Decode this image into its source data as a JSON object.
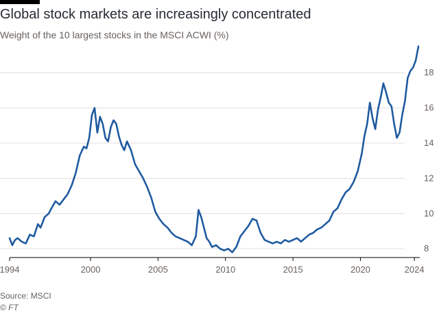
{
  "header": {
    "title": "Global stock markets are increasingly concentrated",
    "subtitle": "Weight of the 10 largest stocks in the MSCI ACWI (%)"
  },
  "footer": {
    "source": "Source: MSCI",
    "credit": "© FT"
  },
  "colors": {
    "line": "#1e5aa0",
    "grid": "#e0dedc",
    "axis": "#000000"
  },
  "chart_data": {
    "type": "line",
    "title": "Global stock markets are increasingly concentrated",
    "subtitle": "Weight of the 10 largest stocks in the MSCI ACWI (%)",
    "xlabel": "",
    "ylabel": "",
    "xlim": [
      1994,
      2024.4
    ],
    "ylim": [
      7.5,
      19.8
    ],
    "x_ticks": [
      1994,
      2000,
      2005,
      2010,
      2015,
      2020,
      2024
    ],
    "y_ticks": [
      8,
      10,
      12,
      14,
      16,
      18
    ],
    "y_axis_position": "right",
    "grid": "horizontal",
    "legend": "none",
    "series": [
      {
        "x": [
          1994.0,
          1994.2,
          1994.4,
          1994.6,
          1994.9,
          1995.2,
          1995.5,
          1995.8,
          1996.1,
          1996.3,
          1996.6,
          1996.9,
          1997.1,
          1997.4,
          1997.7,
          1998.0,
          1998.3,
          1998.6,
          1998.9,
          1999.2,
          1999.5,
          1999.7,
          1999.9,
          2000.1,
          2000.3,
          2000.5,
          2000.7,
          2000.9,
          2001.1,
          2001.3,
          2001.5,
          2001.7,
          2001.9,
          2002.1,
          2002.3,
          2002.5,
          2002.7,
          2003.0,
          2003.3,
          2003.6,
          2003.9,
          2004.2,
          2004.5,
          2004.8,
          2005.1,
          2005.4,
          2005.7,
          2006.0,
          2006.3,
          2006.6,
          2006.9,
          2007.2,
          2007.5,
          2007.8,
          2008.0,
          2008.2,
          2008.4,
          2008.6,
          2008.8,
          2009.0,
          2009.3,
          2009.6,
          2009.9,
          2010.2,
          2010.5,
          2010.8,
          2011.1,
          2011.4,
          2011.7,
          2012.0,
          2012.3,
          2012.6,
          2012.9,
          2013.2,
          2013.5,
          2013.8,
          2014.1,
          2014.4,
          2014.7,
          2015.0,
          2015.3,
          2015.6,
          2015.9,
          2016.2,
          2016.5,
          2016.8,
          2017.1,
          2017.4,
          2017.7,
          2018.0,
          2018.3,
          2018.6,
          2018.9,
          2019.2,
          2019.5,
          2019.8,
          2020.1,
          2020.3,
          2020.5,
          2020.7,
          2020.9,
          2021.1,
          2021.3,
          2021.5,
          2021.7,
          2021.9,
          2022.1,
          2022.3,
          2022.5,
          2022.7,
          2022.9,
          2023.1,
          2023.3,
          2023.5,
          2023.7,
          2023.9,
          2024.1,
          2024.3
        ],
        "values": [
          8.6,
          8.2,
          8.5,
          8.6,
          8.4,
          8.3,
          8.8,
          8.7,
          9.4,
          9.2,
          9.8,
          10.0,
          10.3,
          10.7,
          10.5,
          10.8,
          11.1,
          11.6,
          12.3,
          13.3,
          13.8,
          13.7,
          14.3,
          15.6,
          16.0,
          14.6,
          15.5,
          15.1,
          14.3,
          14.1,
          14.9,
          15.3,
          15.1,
          14.4,
          13.9,
          13.6,
          14.1,
          13.6,
          12.8,
          12.4,
          12.0,
          11.5,
          10.9,
          10.1,
          9.7,
          9.4,
          9.2,
          8.9,
          8.7,
          8.6,
          8.5,
          8.4,
          8.2,
          8.7,
          10.2,
          9.8,
          9.2,
          8.6,
          8.4,
          8.1,
          8.2,
          8.0,
          7.9,
          8.0,
          7.8,
          8.1,
          8.7,
          9.0,
          9.3,
          9.7,
          9.6,
          8.9,
          8.5,
          8.4,
          8.3,
          8.4,
          8.3,
          8.5,
          8.4,
          8.5,
          8.6,
          8.4,
          8.6,
          8.8,
          8.9,
          9.1,
          9.2,
          9.4,
          9.6,
          10.1,
          10.3,
          10.8,
          11.2,
          11.4,
          11.8,
          12.4,
          13.4,
          14.4,
          15.1,
          16.3,
          15.4,
          14.8,
          15.9,
          16.6,
          17.4,
          16.9,
          16.3,
          16.1,
          15.1,
          14.3,
          14.6,
          15.6,
          16.4,
          17.7,
          18.1,
          18.3,
          18.7,
          19.5
        ]
      }
    ]
  }
}
